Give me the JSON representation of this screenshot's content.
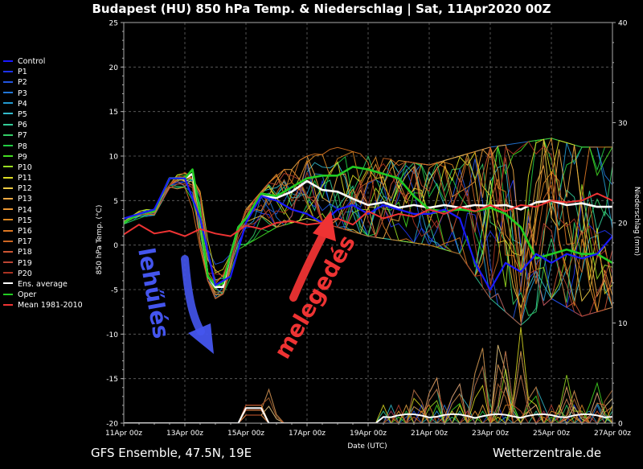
{
  "title": "Budapest  (HU)  850 hPa Temp. & Niederschlag | Sat, 11Apr2020 00Z",
  "footer": {
    "left": "GFS Ensemble, 47.5N, 19E",
    "right": "Wetterzentrale.de"
  },
  "legend": [
    {
      "name": "Control",
      "color": "#1a1aff"
    },
    {
      "name": "P1",
      "color": "#1e33ee"
    },
    {
      "name": "P2",
      "color": "#2255e0"
    },
    {
      "name": "P3",
      "color": "#2277d8"
    },
    {
      "name": "P4",
      "color": "#2299d0"
    },
    {
      "name": "P5",
      "color": "#33bbcc"
    },
    {
      "name": "P6",
      "color": "#33cc99"
    },
    {
      "name": "P7",
      "color": "#33cc66"
    },
    {
      "name": "P8",
      "color": "#22cc44"
    },
    {
      "name": "P9",
      "color": "#44dd22"
    },
    {
      "name": "P10",
      "color": "#99dd22"
    },
    {
      "name": "P11",
      "color": "#dddd22"
    },
    {
      "name": "P12",
      "color": "#eecc44"
    },
    {
      "name": "P13",
      "color": "#eeaa44"
    },
    {
      "name": "P14",
      "color": "#ee9933"
    },
    {
      "name": "P15",
      "color": "#dd8822"
    },
    {
      "name": "P16",
      "color": "#dd7722"
    },
    {
      "name": "P17",
      "color": "#cc6622"
    },
    {
      "name": "P18",
      "color": "#cc5533"
    },
    {
      "name": "P19",
      "color": "#bb4433"
    },
    {
      "name": "P20",
      "color": "#aa3322"
    },
    {
      "name": "Ens. average",
      "color": "#ffffff"
    },
    {
      "name": "Oper",
      "color": "#22cc22"
    },
    {
      "name": "Mean 1981-2010",
      "color": "#ee3333"
    }
  ],
  "annotations": {
    "cooling": {
      "text": "lehűlés",
      "color": "#4455ee"
    },
    "warming": {
      "text": "melegedés",
      "color": "#ee3333"
    }
  },
  "chart_data": {
    "type": "line",
    "title": "Budapest  (HU)  850 hPa Temp. & Niederschlag | Sat, 11Apr2020 00Z",
    "xlabel": "Date (UTC)",
    "ylabel": "850 hPa Temp. (°C)",
    "y2label": "Niederschlag (mm)",
    "x_ticks": [
      "11Apr 00z",
      "13Apr 00z",
      "15Apr 00z",
      "17Apr 00z",
      "19Apr 00z",
      "21Apr 00z",
      "23Apr 00z",
      "25Apr 00z",
      "27Apr 00z"
    ],
    "x_range_hours": [
      0,
      384
    ],
    "ylim": [
      -20,
      25
    ],
    "y_ticks": [
      -20,
      -15,
      -10,
      -5,
      0,
      5,
      10,
      15,
      20,
      25
    ],
    "y2lim": [
      0,
      40
    ],
    "y2_ticks": [
      0,
      10,
      20,
      30,
      40
    ],
    "grid": true,
    "legend_placement": "left",
    "temp_series": [
      {
        "name": "Ens. average",
        "color": "#ffffff",
        "width": 2.6,
        "hours": [
          0,
          12,
          24,
          36,
          48,
          54,
          60,
          66,
          72,
          78,
          84,
          90,
          96,
          108,
          120,
          132,
          144,
          156,
          168,
          180,
          192,
          204,
          216,
          228,
          240,
          252,
          264,
          276,
          288,
          300,
          312,
          324,
          336,
          348,
          360,
          372,
          384
        ],
        "values": [
          2.5,
          3.5,
          3.8,
          7.5,
          7.5,
          8,
          3.5,
          -3.5,
          -4.7,
          -4.7,
          -1,
          2,
          3,
          5.5,
          5.3,
          6,
          7.2,
          6.2,
          6,
          5.2,
          4.5,
          4.8,
          4.2,
          4.5,
          4.2,
          4.5,
          4.2,
          4.5,
          4.4,
          4.5,
          4,
          4.8,
          5,
          4.5,
          4.7,
          4.3,
          4.3
        ]
      },
      {
        "name": "Oper",
        "color": "#22cc22",
        "width": 2.6,
        "hours": [
          0,
          12,
          24,
          36,
          48,
          54,
          60,
          66,
          72,
          78,
          84,
          90,
          96,
          108,
          120,
          132,
          144,
          156,
          168,
          180,
          192,
          204,
          216,
          228,
          240,
          252,
          264,
          276,
          288,
          300,
          312,
          324,
          336,
          348,
          360,
          372,
          384
        ],
        "values": [
          2.5,
          3.5,
          3.8,
          7.5,
          7.5,
          8.5,
          3.5,
          -3.5,
          -4.5,
          -4.3,
          -1,
          2,
          3,
          5.8,
          5.5,
          6.5,
          7.5,
          7.8,
          7.8,
          8.8,
          8.5,
          8,
          7.5,
          5.5,
          4,
          3.8,
          4,
          3.8,
          4.2,
          3.5,
          2,
          -1.5,
          -1,
          -0.5,
          -1,
          -1,
          -2
        ]
      },
      {
        "name": "Control",
        "color": "#1a1aff",
        "width": 2.2,
        "hours": [
          0,
          12,
          24,
          36,
          48,
          60,
          72,
          84,
          96,
          108,
          120,
          132,
          144,
          156,
          168,
          180,
          192,
          204,
          216,
          228,
          240,
          252,
          264,
          276,
          288,
          300,
          312,
          324,
          336,
          348,
          360,
          372,
          384
        ],
        "values": [
          3,
          3.5,
          4,
          7.5,
          7.5,
          3,
          -4.5,
          -3.5,
          2.5,
          5.5,
          5,
          4,
          3.5,
          2.5,
          4,
          4.5,
          3.5,
          4.5,
          4,
          3.5,
          3.5,
          4,
          3,
          -2,
          -5,
          -2,
          -3,
          -1,
          -2,
          -1,
          -1.5,
          -1,
          1
        ]
      },
      {
        "name": "Mean 1981-2010",
        "color": "#ee3333",
        "width": 2,
        "hours": [
          0,
          12,
          24,
          36,
          48,
          60,
          72,
          84,
          96,
          108,
          120,
          132,
          144,
          156,
          168,
          180,
          192,
          204,
          216,
          228,
          240,
          252,
          264,
          276,
          288,
          300,
          312,
          324,
          336,
          348,
          360,
          372,
          384
        ],
        "values": [
          1.2,
          2.3,
          1.3,
          1.6,
          1,
          1.8,
          1.3,
          1,
          2.2,
          1.8,
          2.5,
          2.7,
          2.3,
          2.5,
          3,
          2.3,
          3.8,
          3,
          3.5,
          3.2,
          4,
          3.5,
          4.3,
          3.8,
          4.5,
          3.8,
          4.5,
          4.3,
          5,
          4.8,
          5,
          5.8,
          5
        ]
      }
    ],
    "members_envelope": {
      "hours": [
        0,
        24,
        48,
        60,
        72,
        84,
        96,
        120,
        144,
        168,
        192,
        216,
        240,
        264,
        288,
        312,
        336,
        360,
        384
      ],
      "min": [
        2,
        3,
        6.5,
        -2,
        -6,
        -5,
        0,
        2,
        3,
        2,
        1,
        0.5,
        0,
        -1,
        -6,
        -9,
        -6,
        -8,
        -7
      ],
      "max": [
        3.5,
        4.5,
        9,
        6,
        -2,
        -1,
        4,
        8,
        10,
        11,
        10,
        9.5,
        9,
        10,
        11,
        11.5,
        12,
        11,
        11
      ]
    },
    "precip_peaks_mm": [
      {
        "hour": 114,
        "value": 4.2
      },
      {
        "hour": 280,
        "value": 12.5
      },
      {
        "hour": 244,
        "value": 7.5
      },
      {
        "hour": 262,
        "value": 6.5
      },
      {
        "hour": 296,
        "value": 13
      },
      {
        "hour": 312,
        "value": 12
      },
      {
        "hour": 348,
        "value": 6
      },
      {
        "hour": 372,
        "value": 5
      },
      {
        "hour": 382,
        "value": 5.5
      },
      {
        "hour": 230,
        "value": 5.5
      },
      {
        "hour": 300,
        "value": 9
      },
      {
        "hour": 322,
        "value": 6
      },
      {
        "hour": 354,
        "value": 4
      }
    ]
  }
}
